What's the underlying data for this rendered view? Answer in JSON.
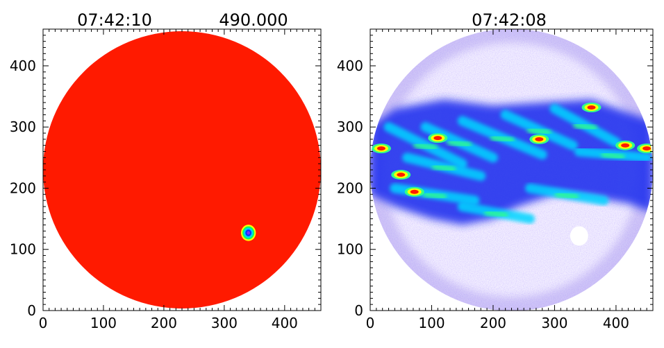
{
  "chart_data": [
    {
      "type": "heatmap",
      "title_left": "07:42:10",
      "title_right": "490.000",
      "xlim": [
        0,
        460
      ],
      "ylim": [
        0,
        460
      ],
      "x_ticks": [
        0,
        100,
        200,
        300,
        400
      ],
      "y_ticks": [
        0,
        100,
        200,
        300,
        400
      ],
      "disc": {
        "center": [
          230,
          230
        ],
        "radius": 230,
        "color": "#ff1a00"
      },
      "marker": {
        "center": [
          340,
          127
        ],
        "radius": 15
      },
      "colormap": [
        "#7a2cff",
        "#0033ff",
        "#00ccff",
        "#00ff66",
        "#ffff00",
        "#ff1a00"
      ]
    },
    {
      "type": "heatmap",
      "title": "07:42:08",
      "xlim": [
        0,
        460
      ],
      "ylim": [
        0,
        460
      ],
      "x_ticks": [
        0,
        100,
        200,
        300,
        400
      ],
      "y_ticks": [
        0,
        100,
        200,
        300,
        400
      ],
      "disc": {
        "center": [
          230,
          230
        ],
        "radius": 230
      },
      "hot_spots": [
        {
          "x": 18,
          "y": 265
        },
        {
          "x": 50,
          "y": 222
        },
        {
          "x": 72,
          "y": 194
        },
        {
          "x": 110,
          "y": 282
        },
        {
          "x": 360,
          "y": 332
        },
        {
          "x": 415,
          "y": 270
        },
        {
          "x": 450,
          "y": 265
        },
        {
          "x": 275,
          "y": 280
        }
      ],
      "blank_spot": {
        "x": 340,
        "y": 122
      }
    }
  ]
}
